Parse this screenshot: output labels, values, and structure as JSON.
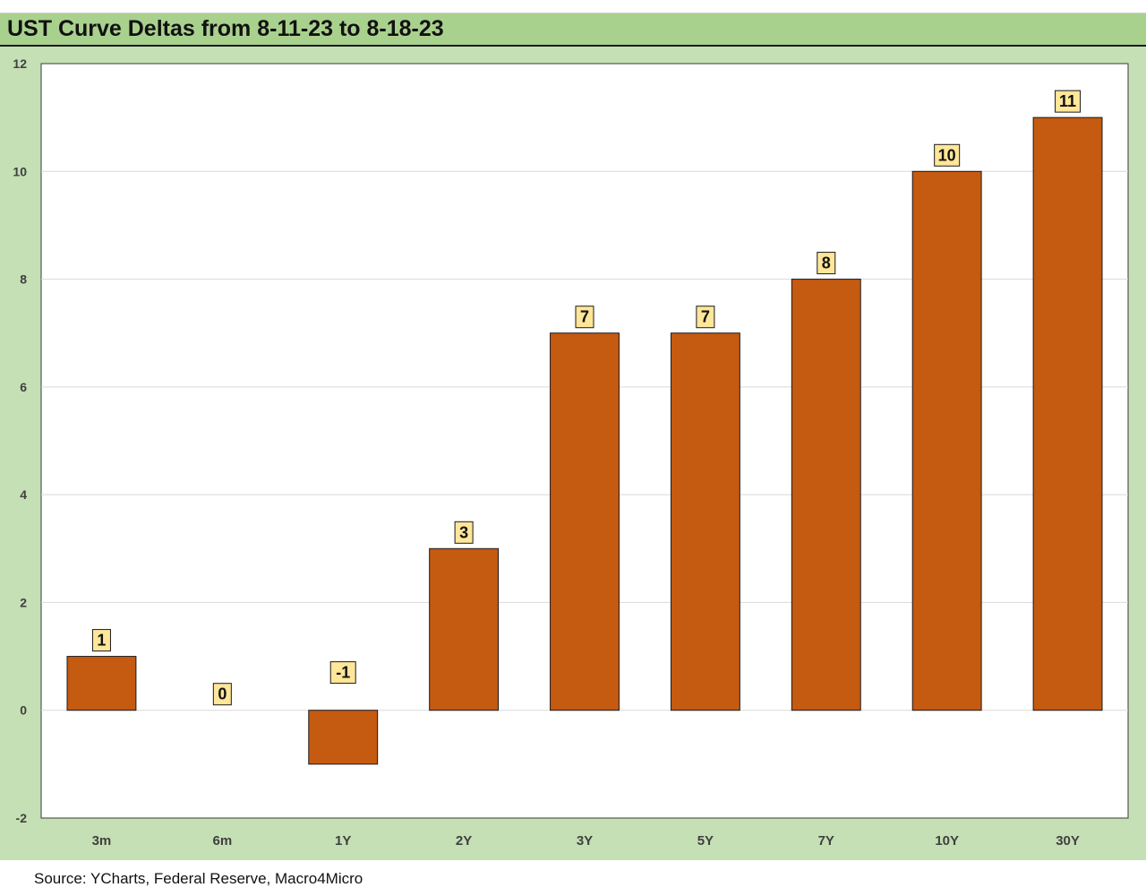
{
  "title": "UST Curve Deltas from 8-11-23 to 8-18-23",
  "source": "Source: YCharts, Federal Reserve, Macro4Micro",
  "colors": {
    "bar": "#c55a11",
    "title_bg": "#a9d18e",
    "plot_surround": "#c5e0b4",
    "label_bg": "#ffe699"
  },
  "chart_data": {
    "type": "bar",
    "title": "UST Curve Deltas from 8-11-23 to 8-18-23",
    "categories": [
      "3m",
      "6m",
      "1Y",
      "2Y",
      "3Y",
      "5Y",
      "7Y",
      "10Y",
      "30Y"
    ],
    "values": [
      1,
      0,
      -1,
      3,
      7,
      7,
      8,
      10,
      11
    ],
    "ylim": [
      -2,
      12
    ],
    "yticks": [
      -2,
      0,
      2,
      4,
      6,
      8,
      10,
      12
    ],
    "grid": true,
    "legend": "none",
    "data_labels": true
  }
}
